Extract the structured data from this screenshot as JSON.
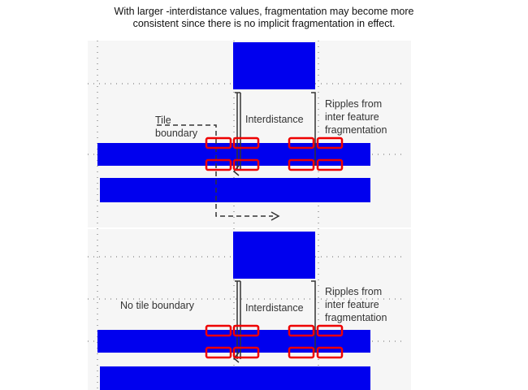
{
  "caption": {
    "line1": "With larger -interdistance values, fragmentation may become more",
    "line2": "consistent since there is no implicit fragmentation in effect."
  },
  "top_panel": {
    "tile_label_line1": "Tile",
    "tile_label_line2": "boundary",
    "interdistance_label": "Interdistance",
    "ripples_line1": "Ripples from",
    "ripples_line2": "inter feature",
    "ripples_line3": "fragmentation"
  },
  "bottom_panel": {
    "no_tile_label": "No tile  boundary",
    "interdistance_label": "Interdistance",
    "ripples_line1": "Ripples  from",
    "ripples_line2": "inter feature",
    "ripples_line3": "fragmentation"
  },
  "colors": {
    "feature": "#0000ee",
    "fragment_marker": "#ee0000",
    "annotation": "#333333",
    "panel_bg": "#f6f6f6"
  }
}
